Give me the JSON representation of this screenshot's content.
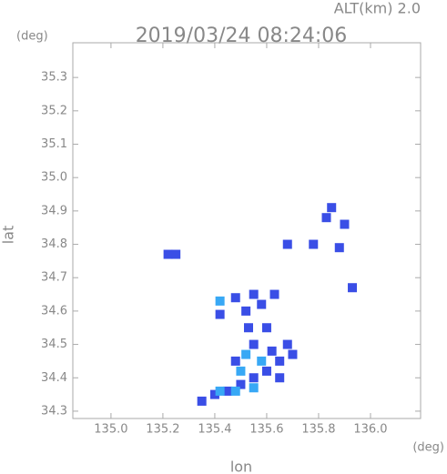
{
  "chart_data": {
    "type": "scatter",
    "title": "2019/03/24 08:24:06",
    "subtitle": "ALT(km) 2.0",
    "y_unit": "(deg)",
    "x_unit": "(deg)",
    "xlabel": "lon",
    "ylabel": "lat",
    "xlim": [
      134.853,
      136.193
    ],
    "ylim": [
      34.278,
      35.404
    ],
    "xticks": [
      {
        "value": 135,
        "label": "135.0"
      },
      135.2,
      135.4,
      135.6,
      135.8,
      {
        "value": 136,
        "label": "136.0"
      }
    ],
    "yticks": [
      34.3,
      34.4,
      34.5,
      34.6,
      34.7,
      34.8,
      34.9,
      {
        "value": 35,
        "label": "35.0"
      },
      35.1,
      35.2,
      35.3
    ],
    "series": [
      {
        "color": "#3a4ee6",
        "x": [
          135.55,
          135.58,
          135.52,
          135.6,
          135.55,
          135.62,
          135.65,
          135.6,
          135.55,
          135.5,
          135.45,
          135.4,
          135.35,
          135.68,
          135.65,
          135.7,
          135.53,
          135.48,
          135.42,
          135.22,
          135.25,
          135.83,
          135.9,
          135.78,
          135.88,
          135.93,
          135.63,
          135.48,
          135.85,
          135.68
        ],
        "values": [
          34.65,
          34.62,
          34.6,
          34.55,
          34.5,
          34.48,
          34.45,
          34.42,
          34.4,
          34.38,
          34.36,
          34.35,
          34.33,
          34.5,
          34.4,
          34.47,
          34.55,
          34.45,
          34.59,
          34.77,
          34.77,
          34.88,
          34.86,
          34.8,
          34.79,
          34.67,
          34.65,
          34.64,
          34.91,
          34.8
        ]
      },
      {
        "color": "#38a8f5",
        "x": [
          135.5,
          135.55,
          135.48,
          135.42,
          135.42,
          135.58,
          135.52
        ],
        "values": [
          34.42,
          34.37,
          34.36,
          34.36,
          34.63,
          34.45,
          34.47
        ]
      }
    ]
  }
}
